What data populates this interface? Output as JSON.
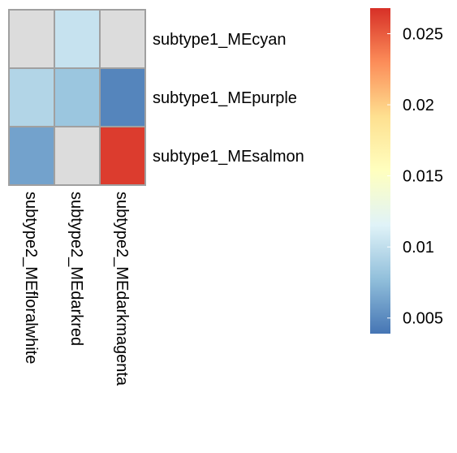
{
  "chart_data": {
    "type": "heatmap",
    "title": "",
    "row_labels": [
      "subtype1_MEcyan",
      "subtype1_MEpurple",
      "subtype1_MEsalmon"
    ],
    "col_labels": [
      "subtype2_MEfloralwhite",
      "subtype2_MEdarkred",
      "subtype2_MEdarkmagenta"
    ],
    "values": [
      [
        null,
        0.0103,
        null
      ],
      [
        0.0093,
        0.0082,
        0.0047
      ],
      [
        0.0062,
        null,
        0.0263
      ]
    ],
    "missing_color": "#DCDCDC",
    "legend": {
      "min": 0.0039,
      "max": 0.0268,
      "ticks": [
        0.005,
        0.01,
        0.015,
        0.02,
        0.025
      ],
      "tick_labels": [
        "0.005",
        "0.01",
        "0.015",
        "0.02",
        "0.025"
      ],
      "colors": [
        "#4575B4",
        "#91BFDB",
        "#E0F3F8",
        "#FFFFBF",
        "#FEE090",
        "#FC8D59",
        "#D73027"
      ],
      "placement": "right"
    },
    "grid": false,
    "cell_border_color": "#A0A0A0"
  }
}
